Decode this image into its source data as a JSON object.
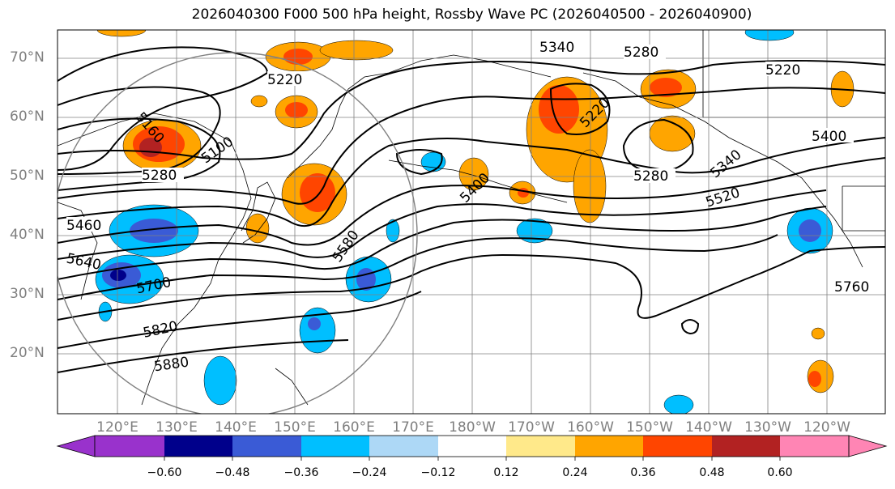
{
  "title": "2026040300 F000 500 hPa height, Rossby Wave PC (2026040500 - 2026040900)",
  "lat_labels": [
    "70°N",
    "60°N",
    "50°N",
    "40°N",
    "30°N",
    "20°N"
  ],
  "lon_labels": [
    "120°E",
    "130°E",
    "140°E",
    "150°E",
    "160°E",
    "170°E",
    "180°W",
    "170°W",
    "160°W",
    "150°W",
    "140°W",
    "130°W",
    "120°W"
  ],
  "contour_labels": [
    "5340",
    "5280",
    "5220",
    "5220",
    "5220",
    "5160",
    "5100",
    "5280",
    "5400",
    "5280",
    "5340",
    "5400",
    "5520",
    "5460",
    "5580",
    "5640",
    "5700",
    "5760",
    "5820",
    "5880"
  ],
  "colorbar": {
    "ticks": [
      "−0.60",
      "−0.48",
      "−0.36",
      "−0.24",
      "−0.12",
      "0.12",
      "0.24",
      "0.36",
      "0.48",
      "0.60"
    ],
    "colors": [
      "#9932cc",
      "#00008b",
      "#3a5bd6",
      "#00bfff",
      "#add8f6",
      "#ffffff",
      "#ffe98a",
      "#ffa500",
      "#ff4500",
      "#b22222",
      "#ff85b4"
    ]
  }
}
